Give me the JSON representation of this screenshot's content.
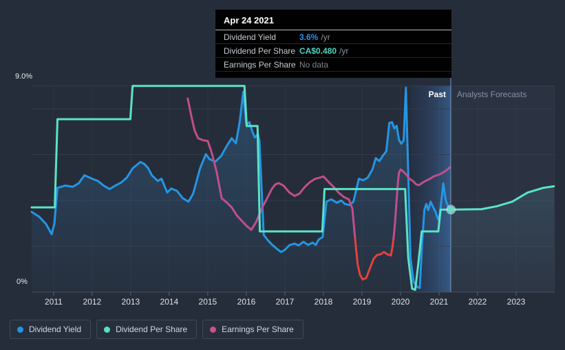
{
  "header": {
    "past_label": "Past",
    "forecast_label": "Analysts Forecasts"
  },
  "tooltip": {
    "date": "Apr 24 2021",
    "rows": [
      {
        "label": "Dividend Yield",
        "value": "3.6%",
        "suffix": "/yr",
        "value_color": "#2196f3"
      },
      {
        "label": "Dividend Per Share",
        "value": "CA$0.480",
        "suffix": "/yr",
        "value_color": "#46d7c2"
      },
      {
        "label": "Earnings Per Share",
        "value": "No data",
        "suffix": "",
        "value_color": "#7c828c"
      }
    ]
  },
  "axis": {
    "y_top_label": "9.0%",
    "y_bottom_label": "0%"
  },
  "legend": [
    {
      "label": "Dividend Yield",
      "color": "#2196e0"
    },
    {
      "label": "Dividend Per Share",
      "color": "#57e0c6"
    },
    {
      "label": "Earnings Per Share",
      "color": "#c9518d"
    }
  ],
  "colors": {
    "background": "#262d3a",
    "gridline": "#333c49",
    "axis_line": "#46505f",
    "tick": "#5a6473",
    "divider": "#7ba2d2",
    "yield_line": "#2496e4",
    "dps_line": "#5be3c9",
    "eps_line": "#c04f8b",
    "eps_negative": "#e5413e",
    "tooltip_bg": "#010101"
  },
  "chart_data": {
    "type": "line",
    "title": "Dividend history and forecast",
    "x_axis": {
      "range": [
        2010.43,
        2024.0
      ],
      "ticks": [
        2011,
        2012,
        2013,
        2014,
        2015,
        2016,
        2017,
        2018,
        2019,
        2020,
        2021,
        2022,
        2023
      ]
    },
    "y_axis": {
      "label": "Dividend Yield %",
      "range": [
        0,
        9
      ],
      "top_label": "9.0%",
      "bottom_label": "0%",
      "gridlines_pct": [
        2,
        4,
        6,
        8,
        9
      ]
    },
    "today": {
      "x": 2021.31,
      "date": "Apr 24 2021"
    },
    "marker": {
      "x": 2021.31,
      "y": 3.6
    },
    "cursor_values": {
      "dividend_yield": "3.6% /yr",
      "dividend_per_share": "CA$0.480 /yr",
      "earnings_per_share": "No data"
    },
    "series": [
      {
        "name": "Dividend Yield",
        "unit": "%",
        "area": true,
        "points": [
          [
            2010.43,
            3.5
          ],
          [
            2010.62,
            3.3
          ],
          [
            2010.8,
            2.98
          ],
          [
            2010.95,
            2.53
          ],
          [
            2011.02,
            3.0
          ],
          [
            2011.1,
            4.55
          ],
          [
            2011.3,
            4.65
          ],
          [
            2011.5,
            4.6
          ],
          [
            2011.65,
            4.75
          ],
          [
            2011.8,
            5.1
          ],
          [
            2012.0,
            4.95
          ],
          [
            2012.15,
            4.85
          ],
          [
            2012.3,
            4.65
          ],
          [
            2012.45,
            4.5
          ],
          [
            2012.6,
            4.65
          ],
          [
            2012.75,
            4.78
          ],
          [
            2012.9,
            5.0
          ],
          [
            2013.05,
            5.4
          ],
          [
            2013.25,
            5.68
          ],
          [
            2013.35,
            5.6
          ],
          [
            2013.45,
            5.42
          ],
          [
            2013.55,
            5.1
          ],
          [
            2013.7,
            4.85
          ],
          [
            2013.8,
            4.95
          ],
          [
            2013.95,
            4.35
          ],
          [
            2014.05,
            4.52
          ],
          [
            2014.2,
            4.42
          ],
          [
            2014.35,
            4.1
          ],
          [
            2014.5,
            3.95
          ],
          [
            2014.62,
            4.3
          ],
          [
            2014.8,
            5.4
          ],
          [
            2014.95,
            6.02
          ],
          [
            2015.05,
            5.8
          ],
          [
            2015.2,
            5.7
          ],
          [
            2015.35,
            5.95
          ],
          [
            2015.5,
            6.4
          ],
          [
            2015.62,
            6.72
          ],
          [
            2015.73,
            6.5
          ],
          [
            2015.83,
            7.45
          ],
          [
            2015.92,
            8.75
          ],
          [
            2016.0,
            7.32
          ],
          [
            2016.08,
            7.42
          ],
          [
            2016.16,
            7.0
          ],
          [
            2016.22,
            6.75
          ],
          [
            2016.3,
            6.9
          ],
          [
            2016.34,
            6.6
          ],
          [
            2016.45,
            2.5
          ],
          [
            2016.55,
            2.28
          ],
          [
            2016.68,
            2.05
          ],
          [
            2016.8,
            1.88
          ],
          [
            2016.9,
            1.75
          ],
          [
            2017.0,
            1.85
          ],
          [
            2017.12,
            2.05
          ],
          [
            2017.25,
            2.12
          ],
          [
            2017.36,
            2.04
          ],
          [
            2017.48,
            2.2
          ],
          [
            2017.6,
            2.06
          ],
          [
            2017.72,
            2.16
          ],
          [
            2017.8,
            2.06
          ],
          [
            2017.88,
            2.3
          ],
          [
            2017.98,
            2.4
          ],
          [
            2018.08,
            3.95
          ],
          [
            2018.2,
            4.05
          ],
          [
            2018.35,
            3.9
          ],
          [
            2018.46,
            4.0
          ],
          [
            2018.56,
            3.85
          ],
          [
            2018.68,
            3.8
          ],
          [
            2018.78,
            3.95
          ],
          [
            2018.92,
            4.95
          ],
          [
            2019.03,
            4.88
          ],
          [
            2019.15,
            5.0
          ],
          [
            2019.27,
            5.35
          ],
          [
            2019.36,
            5.85
          ],
          [
            2019.45,
            5.72
          ],
          [
            2019.54,
            5.95
          ],
          [
            2019.63,
            6.15
          ],
          [
            2019.71,
            7.38
          ],
          [
            2019.78,
            7.42
          ],
          [
            2019.84,
            7.15
          ],
          [
            2019.9,
            7.26
          ],
          [
            2019.96,
            6.65
          ],
          [
            2020.02,
            6.48
          ],
          [
            2020.08,
            6.62
          ],
          [
            2020.14,
            8.93
          ],
          [
            2020.2,
            5.2
          ],
          [
            2020.26,
            1.5
          ],
          [
            2020.34,
            0.45
          ],
          [
            2020.44,
            0.22
          ],
          [
            2020.5,
            0.18
          ],
          [
            2020.56,
            2.1
          ],
          [
            2020.62,
            3.6
          ],
          [
            2020.67,
            3.85
          ],
          [
            2020.72,
            3.58
          ],
          [
            2020.78,
            3.95
          ],
          [
            2020.85,
            3.7
          ],
          [
            2020.91,
            3.5
          ],
          [
            2020.97,
            3.18
          ],
          [
            2021.02,
            3.4
          ],
          [
            2021.08,
            4.3
          ],
          [
            2021.11,
            4.75
          ],
          [
            2021.17,
            4.05
          ],
          [
            2021.22,
            3.8
          ],
          [
            2021.28,
            3.65
          ],
          [
            2021.31,
            3.6
          ]
        ]
      },
      {
        "name": "Dividend Per Share",
        "unit": "% (CA$0.480 = 3.6 at cursor)",
        "points_past": [
          [
            2010.43,
            3.7
          ],
          [
            2011.03,
            3.7
          ],
          [
            2011.1,
            7.55
          ],
          [
            2012.99,
            7.55
          ],
          [
            2013.05,
            9.0
          ],
          [
            2015.95,
            9.0
          ],
          [
            2016.01,
            7.25
          ],
          [
            2016.29,
            7.25
          ],
          [
            2016.35,
            2.65
          ],
          [
            2017.97,
            2.65
          ],
          [
            2018.03,
            4.5
          ],
          [
            2020.12,
            4.5
          ],
          [
            2020.2,
            1.5
          ],
          [
            2020.3,
            0.15
          ],
          [
            2020.38,
            0.1
          ],
          [
            2020.46,
            1.2
          ],
          [
            2020.55,
            2.65
          ],
          [
            2020.98,
            2.65
          ],
          [
            2021.04,
            3.6
          ],
          [
            2021.31,
            3.6
          ]
        ],
        "points_forecast": [
          [
            2021.31,
            3.6
          ],
          [
            2022.1,
            3.62
          ],
          [
            2022.5,
            3.75
          ],
          [
            2022.9,
            3.95
          ],
          [
            2023.3,
            4.35
          ],
          [
            2023.7,
            4.55
          ],
          [
            2023.98,
            4.62
          ]
        ]
      },
      {
        "name": "Earnings Per Share",
        "unit": "%",
        "segments": [
          {
            "color_key": "eps_line",
            "points": [
              [
                2014.48,
                8.45
              ],
              [
                2014.57,
                7.7
              ],
              [
                2014.66,
                7.05
              ],
              [
                2014.75,
                6.72
              ],
              [
                2014.88,
                6.63
              ],
              [
                2015.0,
                6.6
              ],
              [
                2015.1,
                6.1
              ],
              [
                2015.23,
                5.25
              ],
              [
                2015.36,
                4.1
              ],
              [
                2015.5,
                3.9
              ],
              [
                2015.62,
                3.7
              ],
              [
                2015.75,
                3.35
              ],
              [
                2015.9,
                3.08
              ],
              [
                2016.0,
                2.9
              ],
              [
                2016.13,
                2.72
              ],
              [
                2016.25,
                3.05
              ],
              [
                2016.4,
                3.65
              ],
              [
                2016.54,
                4.1
              ],
              [
                2016.66,
                4.5
              ],
              [
                2016.75,
                4.7
              ],
              [
                2016.84,
                4.76
              ],
              [
                2016.97,
                4.64
              ],
              [
                2017.11,
                4.36
              ],
              [
                2017.25,
                4.2
              ],
              [
                2017.38,
                4.3
              ],
              [
                2017.52,
                4.6
              ],
              [
                2017.65,
                4.8
              ],
              [
                2017.79,
                4.95
              ],
              [
                2017.91,
                5.0
              ],
              [
                2018.0,
                5.05
              ],
              [
                2018.14,
                4.8
              ],
              [
                2018.27,
                4.58
              ],
              [
                2018.39,
                4.35
              ],
              [
                2018.53,
                4.15
              ],
              [
                2018.66,
                4.05
              ],
              [
                2018.75,
                3.65
              ],
              [
                2018.82,
                2.35
              ]
            ]
          },
          {
            "color_key": "eps_negative",
            "points": [
              [
                2018.82,
                2.35
              ],
              [
                2018.89,
                1.2
              ],
              [
                2018.95,
                0.75
              ],
              [
                2019.02,
                0.55
              ],
              [
                2019.11,
                0.62
              ],
              [
                2019.21,
                1.05
              ],
              [
                2019.3,
                1.45
              ],
              [
                2019.39,
                1.62
              ],
              [
                2019.48,
                1.65
              ],
              [
                2019.57,
                1.75
              ],
              [
                2019.66,
                1.65
              ],
              [
                2019.75,
                1.6
              ],
              [
                2019.79,
                1.95
              ],
              [
                2019.82,
                2.35
              ]
            ]
          },
          {
            "color_key": "eps_line",
            "points": [
              [
                2019.82,
                2.35
              ],
              [
                2019.86,
                3.05
              ],
              [
                2019.89,
                3.8
              ],
              [
                2019.93,
                4.75
              ],
              [
                2019.96,
                5.2
              ],
              [
                2020.0,
                5.35
              ],
              [
                2020.05,
                5.3
              ],
              [
                2020.14,
                5.15
              ],
              [
                2020.23,
                4.95
              ],
              [
                2020.32,
                4.85
              ],
              [
                2020.41,
                4.7
              ],
              [
                2020.48,
                4.67
              ],
              [
                2020.59,
                4.8
              ],
              [
                2020.68,
                4.88
              ],
              [
                2020.77,
                4.95
              ],
              [
                2020.86,
                5.05
              ],
              [
                2020.95,
                5.1
              ],
              [
                2021.04,
                5.16
              ],
              [
                2021.13,
                5.25
              ],
              [
                2021.22,
                5.35
              ],
              [
                2021.28,
                5.45
              ]
            ]
          }
        ]
      }
    ]
  }
}
